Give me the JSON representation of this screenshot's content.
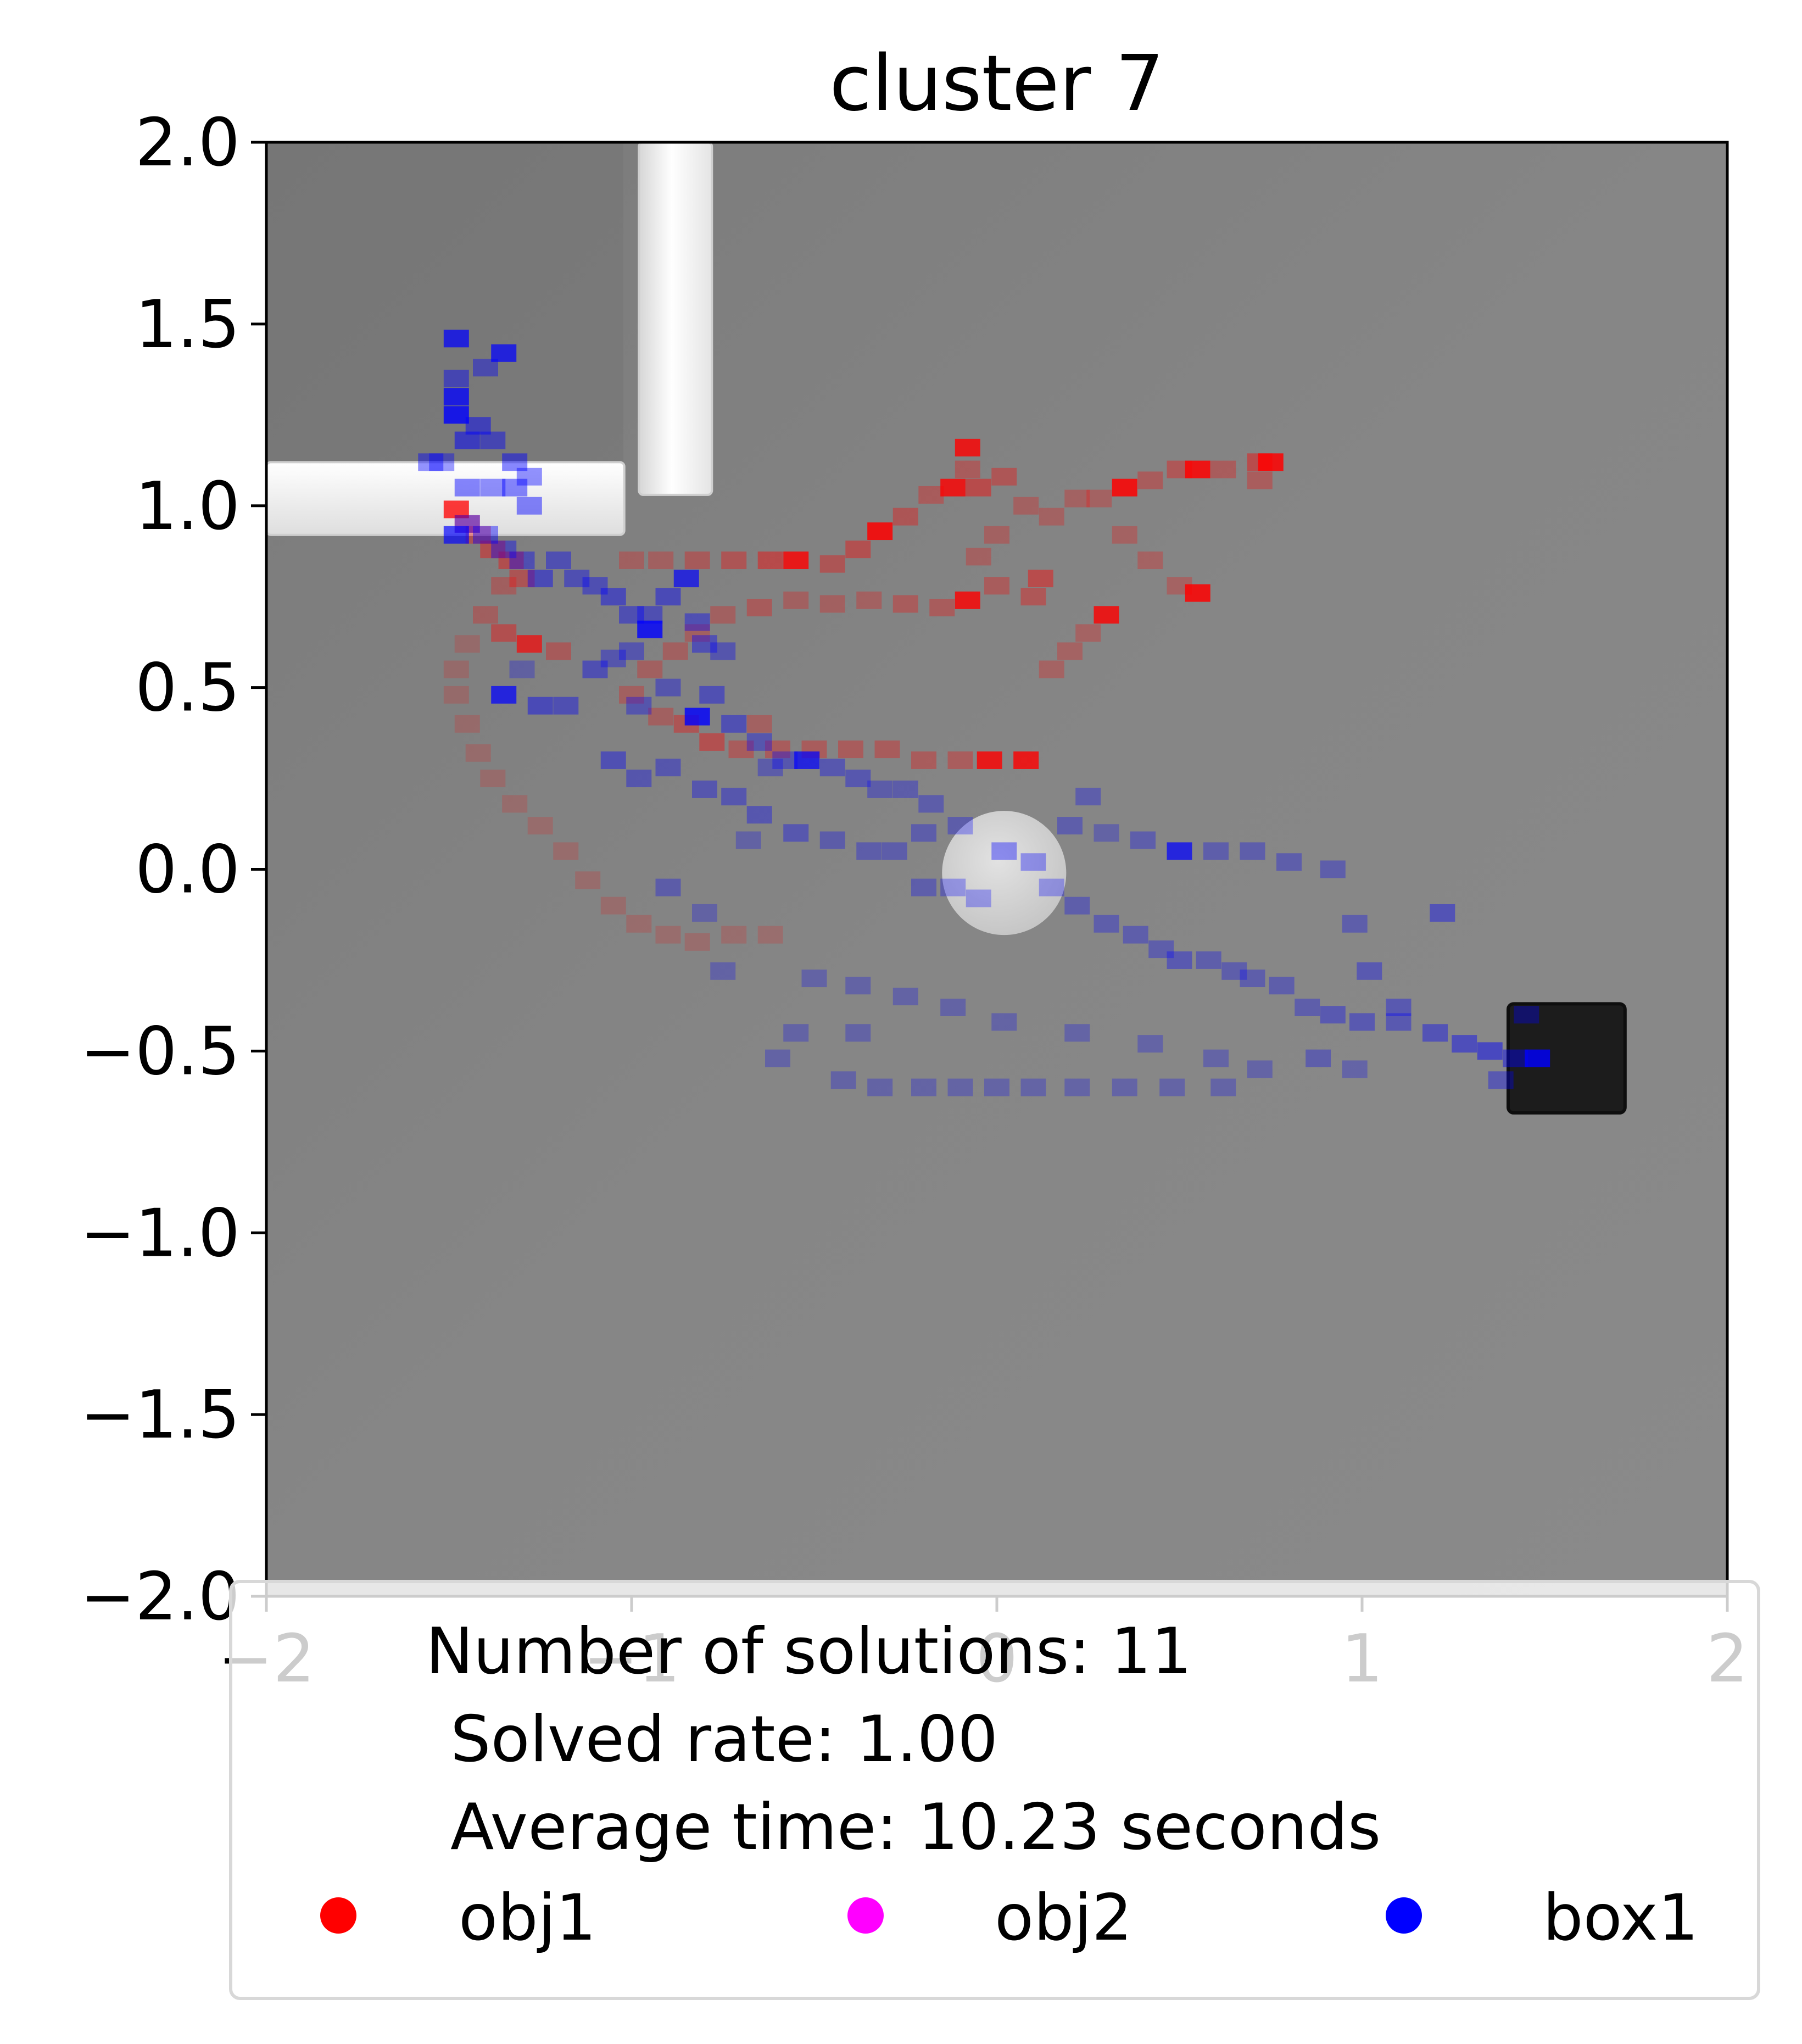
{
  "chart_data": {
    "type": "heatmap",
    "title": "cluster 7",
    "xlabel": "",
    "ylabel": "",
    "xlim": [
      -2,
      2
    ],
    "ylim": [
      -2,
      2
    ],
    "xticks": [
      -2,
      -1,
      0,
      1,
      2
    ],
    "yticks": [
      2.0,
      1.5,
      1.0,
      0.5,
      0.0,
      -0.5,
      -1.0,
      -1.5,
      -2.0
    ],
    "xtick_labels": [
      "−2",
      "−1",
      "0",
      "1",
      "2"
    ],
    "ytick_labels": [
      "2.0",
      "1.5",
      "1.0",
      "0.5",
      "0.0",
      "−0.5",
      "−1.0",
      "−1.5",
      "−2.0"
    ],
    "grid": false,
    "background": "top-down rendered scene: grey floor, white L-shaped wall top-left, white round obstacle near origin, black box at right",
    "scene": {
      "wall_horizontal": {
        "x": [
          -2.0,
          -1.02
        ],
        "y": [
          0.92,
          1.12
        ]
      },
      "wall_vertical": {
        "x": [
          -0.98,
          -0.78
        ],
        "y": [
          1.03,
          2.0
        ]
      },
      "round_obstacle": {
        "center": [
          0.02,
          -0.01
        ],
        "radius": 0.17
      },
      "box": {
        "x": [
          1.4,
          1.72
        ],
        "y": [
          -0.67,
          -0.37
        ]
      }
    },
    "series": [
      {
        "name": "obj1",
        "color": "#ff0000",
        "points": [
          [
            -1.48,
            0.99,
            0.9
          ],
          [
            -1.45,
            0.95,
            0.5
          ],
          [
            -1.42,
            0.92,
            0.4
          ],
          [
            -1.38,
            0.88,
            0.45
          ],
          [
            -1.33,
            0.85,
            0.45
          ],
          [
            -1.3,
            0.8,
            0.4
          ],
          [
            -1.35,
            0.78,
            0.3
          ],
          [
            -1.4,
            0.7,
            0.3
          ],
          [
            -1.35,
            0.65,
            0.45
          ],
          [
            -1.28,
            0.62,
            0.8
          ],
          [
            -1.2,
            0.6,
            0.35
          ],
          [
            -1.45,
            0.62,
            0.2
          ],
          [
            -1.48,
            0.55,
            0.2
          ],
          [
            -1.48,
            0.48,
            0.2
          ],
          [
            -1.45,
            0.4,
            0.2
          ],
          [
            -1.42,
            0.32,
            0.2
          ],
          [
            -1.38,
            0.25,
            0.2
          ],
          [
            -1.32,
            0.18,
            0.2
          ],
          [
            -1.25,
            0.12,
            0.2
          ],
          [
            -1.18,
            0.05,
            0.2
          ],
          [
            -1.12,
            -0.03,
            0.2
          ],
          [
            -1.05,
            -0.1,
            0.2
          ],
          [
            -0.98,
            -0.15,
            0.2
          ],
          [
            -0.9,
            -0.18,
            0.2
          ],
          [
            -0.82,
            -0.2,
            0.2
          ],
          [
            -0.72,
            -0.18,
            0.2
          ],
          [
            -0.62,
            -0.18,
            0.2
          ],
          [
            -1.0,
            0.85,
            0.3
          ],
          [
            -0.92,
            0.85,
            0.3
          ],
          [
            -0.82,
            0.85,
            0.35
          ],
          [
            -0.72,
            0.85,
            0.4
          ],
          [
            -0.62,
            0.85,
            0.5
          ],
          [
            -0.55,
            0.85,
            0.95
          ],
          [
            -0.45,
            0.84,
            0.4
          ],
          [
            -0.38,
            0.88,
            0.45
          ],
          [
            -0.32,
            0.93,
            1.0
          ],
          [
            -0.25,
            0.97,
            0.4
          ],
          [
            -0.18,
            1.03,
            0.35
          ],
          [
            -0.12,
            1.05,
            0.95
          ],
          [
            -0.05,
            1.05,
            0.5
          ],
          [
            0.02,
            1.08,
            0.4
          ],
          [
            -0.08,
            1.16,
            0.95
          ],
          [
            -0.08,
            1.1,
            0.35
          ],
          [
            0.08,
            1.0,
            0.3
          ],
          [
            0.15,
            0.97,
            0.3
          ],
          [
            0.22,
            1.02,
            0.3
          ],
          [
            0.28,
            1.02,
            0.3
          ],
          [
            0.35,
            1.05,
            1.0
          ],
          [
            0.42,
            1.07,
            0.35
          ],
          [
            0.5,
            1.1,
            0.4
          ],
          [
            0.55,
            1.1,
            1.0
          ],
          [
            0.62,
            1.1,
            0.35
          ],
          [
            0.72,
            1.12,
            0.5
          ],
          [
            0.75,
            1.12,
            1.0
          ],
          [
            0.72,
            1.07,
            0.35
          ],
          [
            0.35,
            0.92,
            0.3
          ],
          [
            0.42,
            0.85,
            0.3
          ],
          [
            0.5,
            0.78,
            0.3
          ],
          [
            0.55,
            0.76,
            1.0
          ],
          [
            0.3,
            0.7,
            0.95
          ],
          [
            0.25,
            0.65,
            0.3
          ],
          [
            0.2,
            0.6,
            0.3
          ],
          [
            0.15,
            0.55,
            0.3
          ],
          [
            0.12,
            0.8,
            0.5
          ],
          [
            0.1,
            0.75,
            0.4
          ],
          [
            0.0,
            0.78,
            0.35
          ],
          [
            -0.08,
            0.74,
            0.95
          ],
          [
            -0.15,
            0.72,
            0.35
          ],
          [
            -0.25,
            0.73,
            0.35
          ],
          [
            -0.35,
            0.74,
            0.3
          ],
          [
            -0.45,
            0.73,
            0.3
          ],
          [
            -0.55,
            0.74,
            0.3
          ],
          [
            -0.65,
            0.72,
            0.35
          ],
          [
            -0.75,
            0.7,
            0.3
          ],
          [
            -0.82,
            0.65,
            0.3
          ],
          [
            -0.88,
            0.6,
            0.3
          ],
          [
            -0.95,
            0.55,
            0.3
          ],
          [
            -1.0,
            0.48,
            0.3
          ],
          [
            -0.92,
            0.42,
            0.3
          ],
          [
            -0.85,
            0.4,
            0.4
          ],
          [
            -0.78,
            0.35,
            0.45
          ],
          [
            -0.7,
            0.33,
            0.35
          ],
          [
            -0.6,
            0.33,
            0.35
          ],
          [
            -0.5,
            0.33,
            0.35
          ],
          [
            -0.4,
            0.33,
            0.35
          ],
          [
            -0.3,
            0.33,
            0.35
          ],
          [
            -0.2,
            0.3,
            0.35
          ],
          [
            -0.1,
            0.3,
            0.35
          ],
          [
            -0.02,
            0.3,
            0.95
          ],
          [
            0.08,
            0.3,
            0.95
          ],
          [
            -0.65,
            0.4,
            0.3
          ],
          [
            0.0,
            0.92,
            0.3
          ],
          [
            -0.05,
            0.86,
            0.3
          ]
        ]
      },
      {
        "name": "obj2",
        "color": "#ff00ff",
        "points": []
      },
      {
        "name": "box1",
        "color": "#0000ff",
        "points": [
          [
            -1.48,
            1.46,
            0.85
          ],
          [
            -1.48,
            1.35,
            0.5
          ],
          [
            -1.48,
            1.3,
            0.9
          ],
          [
            -1.48,
            1.25,
            0.95
          ],
          [
            -1.35,
            1.42,
            0.85
          ],
          [
            -1.4,
            1.38,
            0.45
          ],
          [
            -1.45,
            1.18,
            0.6
          ],
          [
            -1.42,
            1.22,
            0.55
          ],
          [
            -1.38,
            1.18,
            0.5
          ],
          [
            -1.32,
            1.12,
            0.55
          ],
          [
            -1.28,
            1.08,
            0.5
          ],
          [
            -1.52,
            1.12,
            0.45
          ],
          [
            -1.55,
            1.12,
            0.5
          ],
          [
            -1.45,
            1.05,
            0.55
          ],
          [
            -1.38,
            1.05,
            0.5
          ],
          [
            -1.32,
            1.05,
            0.55
          ],
          [
            -1.28,
            1.0,
            0.55
          ],
          [
            -1.45,
            0.95,
            0.5
          ],
          [
            -1.48,
            0.92,
            0.8
          ],
          [
            -1.4,
            0.92,
            0.5
          ],
          [
            -1.35,
            0.88,
            0.45
          ],
          [
            -1.3,
            0.85,
            0.45
          ],
          [
            -1.25,
            0.8,
            0.5
          ],
          [
            -1.2,
            0.85,
            0.45
          ],
          [
            -1.15,
            0.8,
            0.45
          ],
          [
            -1.1,
            0.78,
            0.45
          ],
          [
            -1.05,
            0.75,
            0.5
          ],
          [
            -1.0,
            0.7,
            0.45
          ],
          [
            -0.95,
            0.7,
            0.45
          ],
          [
            -0.85,
            0.8,
            0.8
          ],
          [
            -0.9,
            0.75,
            0.5
          ],
          [
            -0.95,
            0.66,
            0.95
          ],
          [
            -0.82,
            0.68,
            0.45
          ],
          [
            -0.8,
            0.62,
            0.45
          ],
          [
            -0.75,
            0.6,
            0.4
          ],
          [
            -1.0,
            0.6,
            0.4
          ],
          [
            -1.05,
            0.58,
            0.4
          ],
          [
            -1.1,
            0.55,
            0.45
          ],
          [
            -1.3,
            0.55,
            0.3
          ],
          [
            -1.35,
            0.48,
            0.85
          ],
          [
            -1.25,
            0.45,
            0.5
          ],
          [
            -1.18,
            0.45,
            0.45
          ],
          [
            -0.98,
            0.45,
            0.4
          ],
          [
            -0.9,
            0.5,
            0.4
          ],
          [
            -0.82,
            0.42,
            0.95
          ],
          [
            -0.78,
            0.48,
            0.45
          ],
          [
            -0.72,
            0.4,
            0.45
          ],
          [
            -0.65,
            0.35,
            0.4
          ],
          [
            -0.58,
            0.3,
            0.4
          ],
          [
            -0.52,
            0.3,
            0.85
          ],
          [
            -0.45,
            0.28,
            0.4
          ],
          [
            -0.38,
            0.25,
            0.4
          ],
          [
            -0.32,
            0.22,
            0.35
          ],
          [
            -0.25,
            0.22,
            0.35
          ],
          [
            -0.18,
            0.18,
            0.35
          ],
          [
            -1.05,
            0.3,
            0.45
          ],
          [
            -0.98,
            0.25,
            0.4
          ],
          [
            -0.9,
            0.28,
            0.4
          ],
          [
            -0.8,
            0.22,
            0.4
          ],
          [
            -0.72,
            0.2,
            0.4
          ],
          [
            -0.65,
            0.15,
            0.4
          ],
          [
            -0.55,
            0.1,
            0.4
          ],
          [
            -0.45,
            0.08,
            0.35
          ],
          [
            -0.35,
            0.05,
            0.35
          ],
          [
            -0.28,
            0.05,
            0.35
          ],
          [
            -0.2,
            -0.05,
            0.35
          ],
          [
            -0.12,
            -0.05,
            0.35
          ],
          [
            -0.05,
            -0.08,
            0.35
          ],
          [
            0.02,
            0.05,
            0.45
          ],
          [
            0.1,
            0.02,
            0.4
          ],
          [
            0.15,
            -0.05,
            0.35
          ],
          [
            0.22,
            -0.1,
            0.35
          ],
          [
            0.3,
            -0.15,
            0.35
          ],
          [
            0.38,
            -0.18,
            0.35
          ],
          [
            0.45,
            -0.22,
            0.35
          ],
          [
            0.5,
            -0.25,
            0.4
          ],
          [
            0.58,
            -0.25,
            0.35
          ],
          [
            0.65,
            -0.28,
            0.35
          ],
          [
            0.7,
            -0.3,
            0.35
          ],
          [
            0.78,
            -0.32,
            0.35
          ],
          [
            0.85,
            -0.38,
            0.35
          ],
          [
            0.92,
            -0.4,
            0.4
          ],
          [
            1.0,
            -0.42,
            0.4
          ],
          [
            1.1,
            -0.42,
            0.4
          ],
          [
            1.2,
            -0.45,
            0.45
          ],
          [
            1.28,
            -0.48,
            0.5
          ],
          [
            1.35,
            -0.5,
            0.55
          ],
          [
            1.42,
            -0.52,
            0.5
          ],
          [
            1.48,
            -0.52,
            0.95
          ],
          [
            0.5,
            0.05,
            0.85
          ],
          [
            0.4,
            0.08,
            0.35
          ],
          [
            0.6,
            0.05,
            0.35
          ],
          [
            0.7,
            0.05,
            0.35
          ],
          [
            0.8,
            0.02,
            0.35
          ],
          [
            0.92,
            0.0,
            0.35
          ],
          [
            0.98,
            -0.15,
            0.35
          ],
          [
            1.02,
            -0.28,
            0.4
          ],
          [
            1.1,
            -0.38,
            0.4
          ],
          [
            0.98,
            -0.55,
            0.3
          ],
          [
            0.88,
            -0.52,
            0.35
          ],
          [
            0.72,
            -0.55,
            0.3
          ],
          [
            0.6,
            -0.52,
            0.3
          ],
          [
            0.42,
            -0.48,
            0.3
          ],
          [
            0.22,
            -0.45,
            0.3
          ],
          [
            0.02,
            -0.42,
            0.3
          ],
          [
            -0.12,
            -0.38,
            0.3
          ],
          [
            -0.25,
            -0.35,
            0.3
          ],
          [
            -0.38,
            -0.32,
            0.3
          ],
          [
            -0.5,
            -0.3,
            0.3
          ],
          [
            -0.55,
            -0.45,
            0.3
          ],
          [
            -0.42,
            -0.58,
            0.3
          ],
          [
            -0.32,
            -0.6,
            0.3
          ],
          [
            -0.2,
            -0.6,
            0.3
          ],
          [
            -0.1,
            -0.6,
            0.3
          ],
          [
            0.0,
            -0.6,
            0.3
          ],
          [
            0.1,
            -0.6,
            0.3
          ],
          [
            0.22,
            -0.6,
            0.3
          ],
          [
            0.35,
            -0.6,
            0.3
          ],
          [
            0.48,
            -0.6,
            0.3
          ],
          [
            0.62,
            -0.6,
            0.3
          ],
          [
            -0.6,
            -0.52,
            0.3
          ],
          [
            -0.75,
            -0.28,
            0.3
          ],
          [
            -0.8,
            -0.12,
            0.3
          ],
          [
            -0.9,
            -0.05,
            0.35
          ],
          [
            0.2,
            0.12,
            0.35
          ],
          [
            0.25,
            0.2,
            0.35
          ],
          [
            -0.62,
            0.28,
            0.35
          ],
          [
            -0.68,
            0.08,
            0.3
          ],
          [
            1.22,
            -0.12,
            0.45
          ],
          [
            1.45,
            -0.4,
            0.4
          ],
          [
            1.38,
            -0.58,
            0.4
          ],
          [
            -0.2,
            0.1,
            0.35
          ],
          [
            -0.1,
            0.12,
            0.35
          ],
          [
            0.3,
            0.1,
            0.3
          ],
          [
            -0.38,
            -0.45,
            0.3
          ]
        ]
      }
    ],
    "legend": {
      "placement": "lower-center",
      "text_lines": [
        "Number of solutions: 11",
        "Solved rate: 1.00",
        "Average time: 10.23 seconds"
      ],
      "entries": [
        {
          "label": "obj1",
          "color": "#ff0000"
        },
        {
          "label": "obj2",
          "color": "#ff00ff"
        },
        {
          "label": "box1",
          "color": "#0000ff"
        }
      ]
    }
  }
}
